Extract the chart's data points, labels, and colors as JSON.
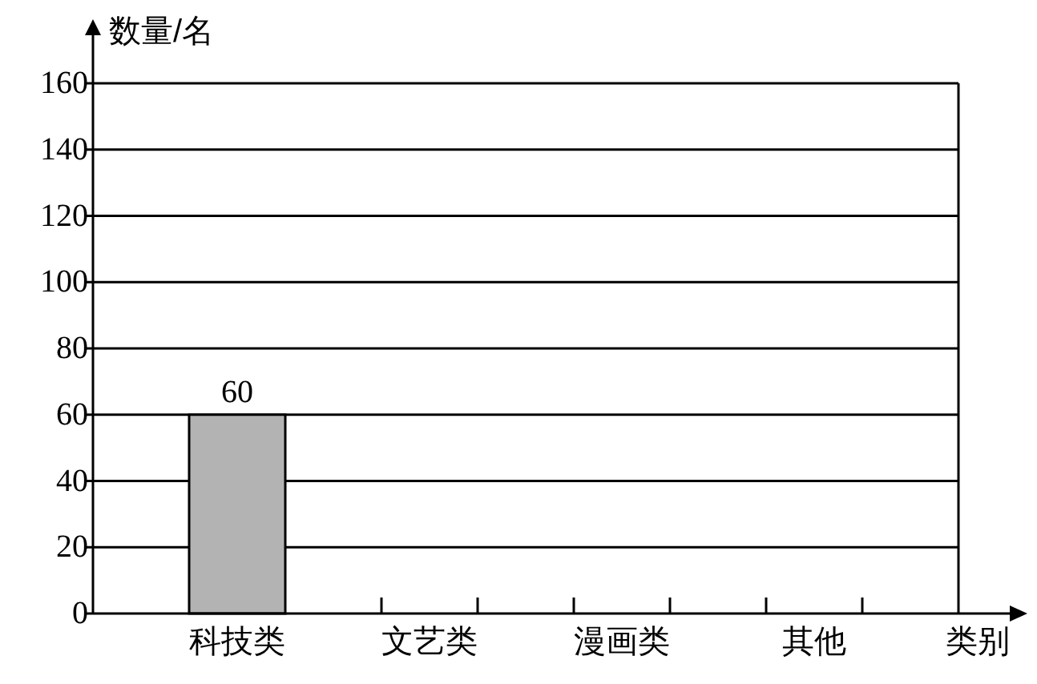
{
  "chart_data": {
    "type": "bar",
    "xlabel": "类别",
    "ylabel": "数量/名",
    "categories": [
      "科技类",
      "文艺类",
      "漫画类",
      "其他"
    ],
    "values": [
      60,
      null,
      null,
      null
    ],
    "color": "#b3b3b3",
    "ylim": [
      0,
      160
    ],
    "yticks": [
      0,
      20,
      40,
      60,
      80,
      100,
      120,
      140,
      160
    ],
    "grid": "y",
    "data_labels": true
  }
}
